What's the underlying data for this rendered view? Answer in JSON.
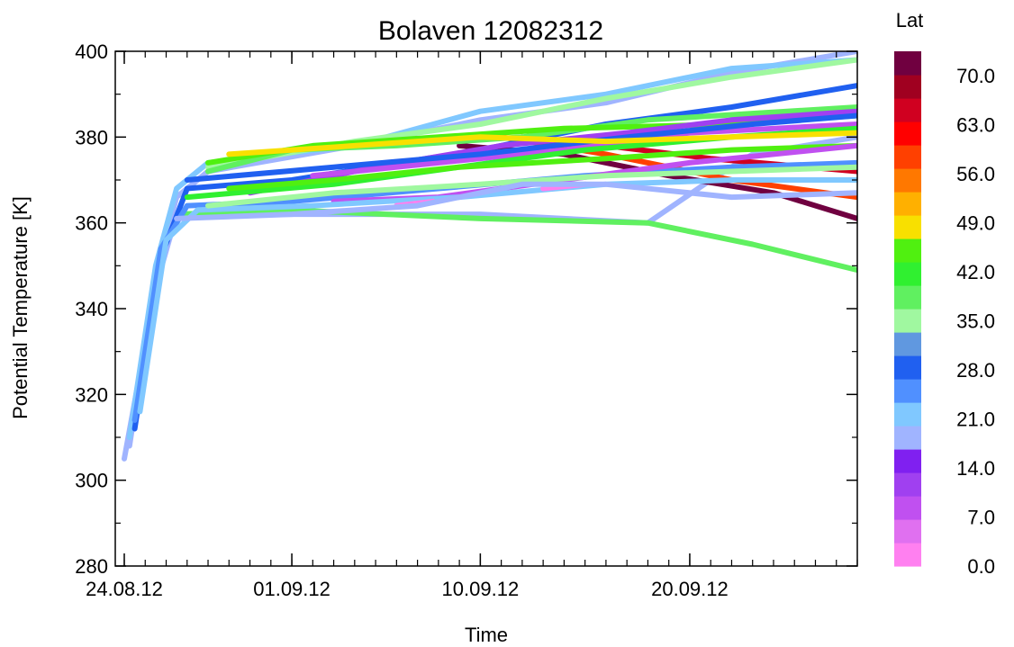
{
  "chart_data": {
    "type": "line",
    "title": "Bolaven 12082312",
    "xlabel": "Time",
    "ylabel": "Potential Temperature [K]",
    "x_axis": {
      "type": "date",
      "start": "2012-08-24",
      "end": "2012-09-28",
      "ticks": [
        {
          "date": "2012-08-24",
          "label": "24.08.12"
        },
        {
          "date": "2012-09-01",
          "label": "01.09.12"
        },
        {
          "date": "2012-09-10",
          "label": "10.09.12"
        },
        {
          "date": "2012-09-20",
          "label": "20.09.12"
        }
      ]
    },
    "y_axis": {
      "ylim": [
        280,
        400
      ],
      "ticks": [
        280,
        300,
        320,
        340,
        360,
        380,
        400
      ],
      "tick_labels": [
        "280",
        "300",
        "320",
        "340",
        "360",
        "380",
        "400"
      ]
    },
    "colorbar": {
      "title": "Lat",
      "range": [
        0,
        73.5
      ],
      "tick_labels": [
        "70.0",
        "63.0",
        "56.0",
        "49.0",
        "42.0",
        "35.0",
        "28.0",
        "21.0",
        "14.0",
        "7.0",
        "0.0"
      ],
      "tick_values": [
        70,
        63,
        56,
        49,
        42,
        35,
        28,
        21,
        14,
        7,
        0
      ],
      "colors": [
        "#ff80f0",
        "#e070f0",
        "#c050f0",
        "#a040f0",
        "#8020f0",
        "#a0b4ff",
        "#80c8ff",
        "#5090ff",
        "#2060f0",
        "#6098e0",
        "#a0f8a0",
        "#60f060",
        "#30f030",
        "#50f010",
        "#f8e000",
        "#ffb000",
        "#ff7800",
        "#ff4000",
        "#ff0000",
        "#d00020",
        "#a00020",
        "#700040"
      ]
    },
    "series": [
      {
        "lat": 18,
        "points": [
          [
            "2012-08-24T00:00",
            305
          ],
          [
            "2012-08-25T12:00",
            345
          ],
          [
            "2012-08-26T12:00",
            362
          ],
          [
            "2012-09-01T00:00",
            362
          ],
          [
            "2012-09-10T00:00",
            362
          ],
          [
            "2012-09-18T00:00",
            360
          ],
          [
            "2012-09-21T00:00",
            370
          ],
          [
            "2012-09-23T00:00",
            376
          ],
          [
            "2012-09-28T00:00",
            380
          ]
        ]
      },
      {
        "lat": 38,
        "points": [
          [
            "2012-08-26T12:00",
            362
          ],
          [
            "2012-09-01T00:00",
            363
          ],
          [
            "2012-09-10T00:00",
            361
          ],
          [
            "2012-09-18T00:00",
            360
          ],
          [
            "2012-09-23T00:00",
            355
          ],
          [
            "2012-09-28T00:00",
            349
          ]
        ]
      },
      {
        "lat": 72,
        "points": [
          [
            "2012-09-09T00:00",
            378
          ],
          [
            "2012-09-14T00:00",
            376
          ],
          [
            "2012-09-19T00:00",
            371
          ],
          [
            "2012-09-24T00:00",
            367
          ],
          [
            "2012-09-28T00:00",
            361
          ]
        ]
      },
      {
        "lat": 66,
        "points": [
          [
            "2012-09-12T00:00",
            380
          ],
          [
            "2012-09-16T00:00",
            378
          ],
          [
            "2012-09-21T00:00",
            375
          ],
          [
            "2012-09-28T00:00",
            372
          ]
        ]
      },
      {
        "lat": 58,
        "points": [
          [
            "2012-09-11T00:00",
            380
          ],
          [
            "2012-09-16T00:00",
            376
          ],
          [
            "2012-09-22T00:00",
            370
          ],
          [
            "2012-09-28T00:00",
            366
          ]
        ]
      },
      {
        "lat": 20,
        "points": [
          [
            "2012-08-24T06:00",
            308
          ],
          [
            "2012-08-25T12:00",
            348
          ],
          [
            "2012-08-26T12:00",
            366
          ],
          [
            "2012-08-28T00:00",
            372
          ],
          [
            "2012-09-04T00:00",
            378
          ],
          [
            "2012-09-10T00:00",
            384
          ],
          [
            "2012-09-16T00:00",
            388
          ],
          [
            "2012-09-22T00:00",
            395
          ],
          [
            "2012-09-28T00:00",
            400
          ]
        ]
      },
      {
        "lat": 23,
        "points": [
          [
            "2012-08-24T06:00",
            310
          ],
          [
            "2012-08-25T12:00",
            350
          ],
          [
            "2012-08-26T12:00",
            368
          ],
          [
            "2012-08-28T00:00",
            374
          ],
          [
            "2012-09-04T00:00",
            378
          ],
          [
            "2012-09-10T00:00",
            386
          ],
          [
            "2012-09-16T00:00",
            390
          ],
          [
            "2012-09-22T00:00",
            396
          ],
          [
            "2012-09-28T00:00",
            398
          ]
        ]
      },
      {
        "lat": 36,
        "points": [
          [
            "2012-08-28T00:00",
            373
          ],
          [
            "2012-09-04T00:00",
            379
          ],
          [
            "2012-09-10T00:00",
            383
          ],
          [
            "2012-09-16T00:00",
            389
          ],
          [
            "2012-09-22T00:00",
            394
          ],
          [
            "2012-09-28T00:00",
            398
          ]
        ]
      },
      {
        "lat": 27,
        "points": [
          [
            "2012-08-24T12:00",
            312
          ],
          [
            "2012-08-25T18:00",
            352
          ],
          [
            "2012-08-27T00:00",
            368
          ],
          [
            "2012-09-01T00:00",
            370
          ],
          [
            "2012-09-10T00:00",
            377
          ],
          [
            "2012-09-16T00:00",
            383
          ],
          [
            "2012-09-22T00:00",
            387
          ],
          [
            "2012-09-28T00:00",
            392
          ]
        ]
      },
      {
        "lat": 40,
        "points": [
          [
            "2012-08-28T00:00",
            372
          ],
          [
            "2012-09-01T00:00",
            377
          ],
          [
            "2012-09-06T00:00",
            378
          ],
          [
            "2012-09-12T00:00",
            380
          ],
          [
            "2012-09-18T00:00",
            384
          ],
          [
            "2012-09-28T00:00",
            387
          ]
        ]
      },
      {
        "lat": 44,
        "points": [
          [
            "2012-08-28T00:00",
            374
          ],
          [
            "2012-09-02T00:00",
            378
          ],
          [
            "2012-09-08T00:00",
            380
          ],
          [
            "2012-09-14T00:00",
            382
          ],
          [
            "2012-09-22T00:00",
            383
          ],
          [
            "2012-09-28T00:00",
            385
          ]
        ]
      },
      {
        "lat": 12,
        "points": [
          [
            "2012-08-30T00:00",
            367
          ],
          [
            "2012-09-05T00:00",
            373
          ],
          [
            "2012-09-11T00:00",
            378
          ],
          [
            "2012-09-17T00:00",
            381
          ],
          [
            "2012-09-22T00:00",
            384
          ],
          [
            "2012-09-28T00:00",
            386
          ]
        ]
      },
      {
        "lat": 10,
        "points": [
          [
            "2012-09-02T00:00",
            371
          ],
          [
            "2012-09-08T00:00",
            374
          ],
          [
            "2012-09-14T00:00",
            377
          ],
          [
            "2012-09-20T00:00",
            381
          ],
          [
            "2012-09-28T00:00",
            383
          ]
        ]
      },
      {
        "lat": 30,
        "points": [
          [
            "2012-08-27T00:00",
            370
          ],
          [
            "2012-09-03T00:00",
            373
          ],
          [
            "2012-09-10T00:00",
            376
          ],
          [
            "2012-09-17T00:00",
            380
          ],
          [
            "2012-09-23T00:00",
            383
          ],
          [
            "2012-09-28T00:00",
            385
          ]
        ]
      },
      {
        "lat": 41,
        "points": [
          [
            "2012-08-27T00:00",
            366
          ],
          [
            "2012-09-03T00:00",
            369
          ],
          [
            "2012-09-09T00:00",
            373
          ],
          [
            "2012-09-15T00:00",
            377
          ],
          [
            "2012-09-22T00:00",
            380
          ],
          [
            "2012-09-28T00:00",
            382
          ]
        ]
      },
      {
        "lat": 24,
        "points": [
          [
            "2012-08-24T12:00",
            314
          ],
          [
            "2012-08-25T18:00",
            354
          ],
          [
            "2012-08-27T00:00",
            364
          ],
          [
            "2012-09-01T00:00",
            365
          ],
          [
            "2012-09-08T00:00",
            368
          ],
          [
            "2012-09-15T00:00",
            371
          ],
          [
            "2012-09-22T00:00",
            373
          ],
          [
            "2012-09-28T00:00",
            374
          ]
        ]
      },
      {
        "lat": 45,
        "points": [
          [
            "2012-08-29T00:00",
            368
          ],
          [
            "2012-09-03T00:00",
            370
          ],
          [
            "2012-09-09T00:00",
            373
          ],
          [
            "2012-09-16T00:00",
            375
          ],
          [
            "2012-09-22T00:00",
            377
          ],
          [
            "2012-09-28T00:00",
            378
          ]
        ]
      },
      {
        "lat": 8,
        "points": [
          [
            "2012-09-03T00:00",
            365
          ],
          [
            "2012-09-08T00:00",
            366
          ],
          [
            "2012-09-14T00:00",
            370
          ],
          [
            "2012-09-20T00:00",
            374
          ],
          [
            "2012-09-28T00:00",
            378
          ]
        ]
      },
      {
        "lat": 22,
        "points": [
          [
            "2012-08-24T18:00",
            316
          ],
          [
            "2012-08-26T00:00",
            356
          ],
          [
            "2012-08-27T12:00",
            363
          ],
          [
            "2012-09-02T00:00",
            364
          ],
          [
            "2012-09-09T00:00",
            366
          ],
          [
            "2012-09-16T00:00",
            369
          ],
          [
            "2012-09-22T00:00",
            370
          ],
          [
            "2012-09-28T00:00",
            370
          ]
        ]
      },
      {
        "lat": 34,
        "points": [
          [
            "2012-08-28T00:00",
            364
          ],
          [
            "2012-09-03T00:00",
            367
          ],
          [
            "2012-09-10T00:00",
            369
          ],
          [
            "2012-09-16T00:00",
            371
          ],
          [
            "2012-09-22T00:00",
            372
          ],
          [
            "2012-09-28T00:00",
            373
          ]
        ]
      },
      {
        "lat": 48,
        "points": [
          [
            "2012-08-29T00:00",
            376
          ],
          [
            "2012-09-04T00:00",
            378
          ],
          [
            "2012-09-10T00:00",
            380
          ],
          [
            "2012-09-16T00:00",
            379
          ],
          [
            "2012-09-22T00:00",
            380
          ],
          [
            "2012-09-28T00:00",
            381
          ]
        ]
      },
      {
        "lat": 3,
        "points": [
          [
            "2012-09-06T00:00",
            364
          ],
          [
            "2012-09-07T18:00",
            365
          ]
        ]
      },
      {
        "lat": 3,
        "points": [
          [
            "2012-09-13T00:00",
            368
          ],
          [
            "2012-09-15T00:00",
            369
          ]
        ]
      },
      {
        "lat": 19,
        "points": [
          [
            "2012-08-26T12:00",
            361
          ],
          [
            "2012-09-01T00:00",
            362
          ],
          [
            "2012-09-07T00:00",
            364
          ],
          [
            "2012-09-12T00:00",
            369
          ],
          [
            "2012-09-16T00:00",
            369
          ],
          [
            "2012-09-22T00:00",
            366
          ],
          [
            "2012-09-28T00:00",
            367
          ]
        ]
      }
    ]
  }
}
